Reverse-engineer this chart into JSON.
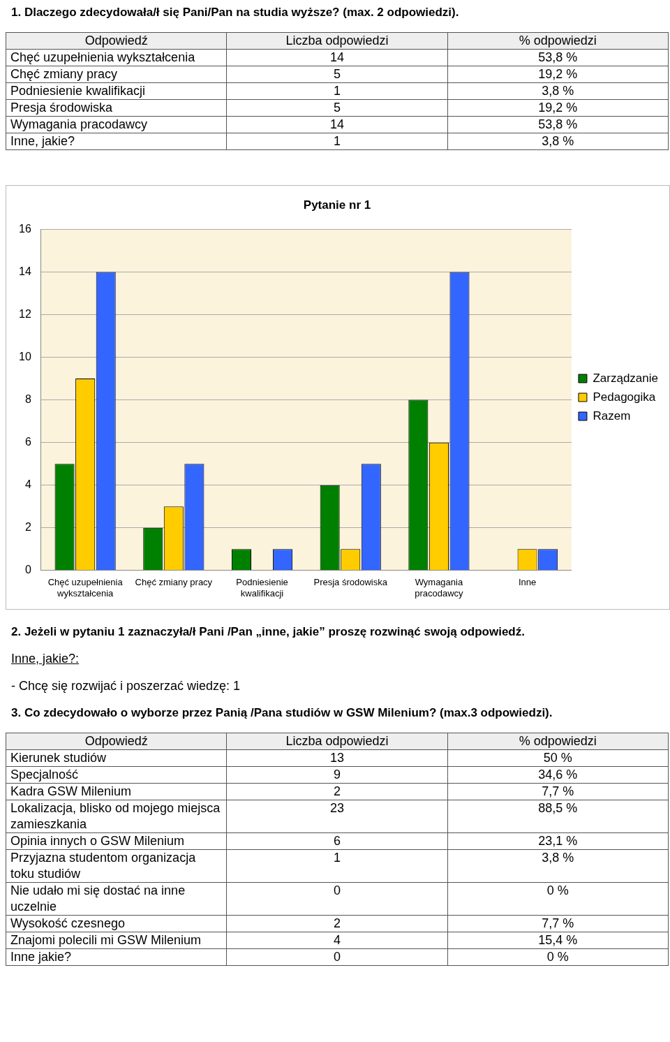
{
  "chart_data": [
    {
      "type": "other",
      "data_labels": true,
      "title": "1. Dlaczego zdecydowała/ł się Pani/Pan na studia wyższe? (max. 2 odpowiedzi).",
      "xlabel": "Odpowiedź",
      "categories": [
        "Chęć uzupełnienia wykształcenia",
        "Chęć zmiany pracy",
        "Podniesienie kwalifikacji",
        "Presja środowiska",
        "Wymagania pracodawcy",
        "Inne, jakie?"
      ],
      "series": [
        {
          "name": "Liczba odpowiedzi",
          "values": [
            14,
            5,
            1,
            5,
            14,
            1
          ]
        },
        {
          "name": "% odpowiedzi",
          "values": [
            53.8,
            19.2,
            3.8,
            19.2,
            53.8,
            3.8
          ],
          "value_labels": [
            "53,8 %",
            "19,2 %",
            "3,8 %",
            "19,2 %",
            "53,8 %",
            "3,8 %"
          ]
        }
      ]
    },
    {
      "type": "bar",
      "title": "Pytanie nr 1",
      "categories": [
        "Chęć uzupełnienia wykształcenia",
        "Chęć zmiany pracy",
        "Podniesienie kwalifikacji",
        "Presja środowiska",
        "Wymagania pracodawcy",
        "Inne"
      ],
      "series": [
        {
          "name": "Zarządzanie",
          "color": "#008000",
          "values": [
            5,
            2,
            1,
            4,
            8,
            0
          ]
        },
        {
          "name": "Pedagogika",
          "color": "#ffcc00",
          "values": [
            9,
            3,
            0,
            1,
            6,
            1
          ]
        },
        {
          "name": "Razem",
          "color": "#3366ff",
          "values": [
            14,
            5,
            1,
            5,
            14,
            1
          ]
        }
      ],
      "ylim": [
        0,
        16
      ],
      "yticks": [
        0,
        2,
        4,
        6,
        8,
        10,
        12,
        14,
        16
      ],
      "grid": "y",
      "legend": "right"
    },
    {
      "type": "other",
      "title": "2. Jeżeli w pytaniu 1 zaznaczyła/ł  Pani /Pan „inne, jakie” proszę rozwinąć swoją odpowiedź.",
      "annotations": [
        "Inne, jakie?:",
        "- Chcę się rozwijać i poszerzać wiedzę: 1"
      ]
    },
    {
      "type": "other",
      "data_labels": true,
      "title": "3. Co zdecydowało o wyborze przez Panią /Pana studiów w GSW Milenium? (max.3 odpowiedzi).",
      "xlabel": "Odpowiedź",
      "categories": [
        "Kierunek studiów",
        "Specjalność",
        "Kadra GSW Milenium",
        "Lokalizacja, blisko od mojego miejsca zamieszkania",
        "Opinia innych o GSW Milenium",
        "Przyjazna studentom organizacja toku studiów",
        "Nie udało mi się dostać na inne uczelnie",
        "Wysokość czesnego",
        "Znajomi polecili mi GSW Milenium",
        "Inne jakie?"
      ],
      "series": [
        {
          "name": "Liczba odpowiedzi",
          "values": [
            13,
            9,
            2,
            23,
            6,
            1,
            0,
            2,
            4,
            0
          ]
        },
        {
          "name": "% odpowiedzi",
          "values": [
            50,
            34.6,
            7.7,
            88.5,
            23.1,
            3.8,
            0,
            7.7,
            15.4,
            0
          ],
          "value_labels": [
            "50 %",
            "34,6 %",
            "7,7 %",
            "88,5 %",
            "23,1 %",
            "3,8 %",
            "0 %",
            "7,7 %",
            "15,4 %",
            "0 %"
          ]
        }
      ]
    }
  ]
}
